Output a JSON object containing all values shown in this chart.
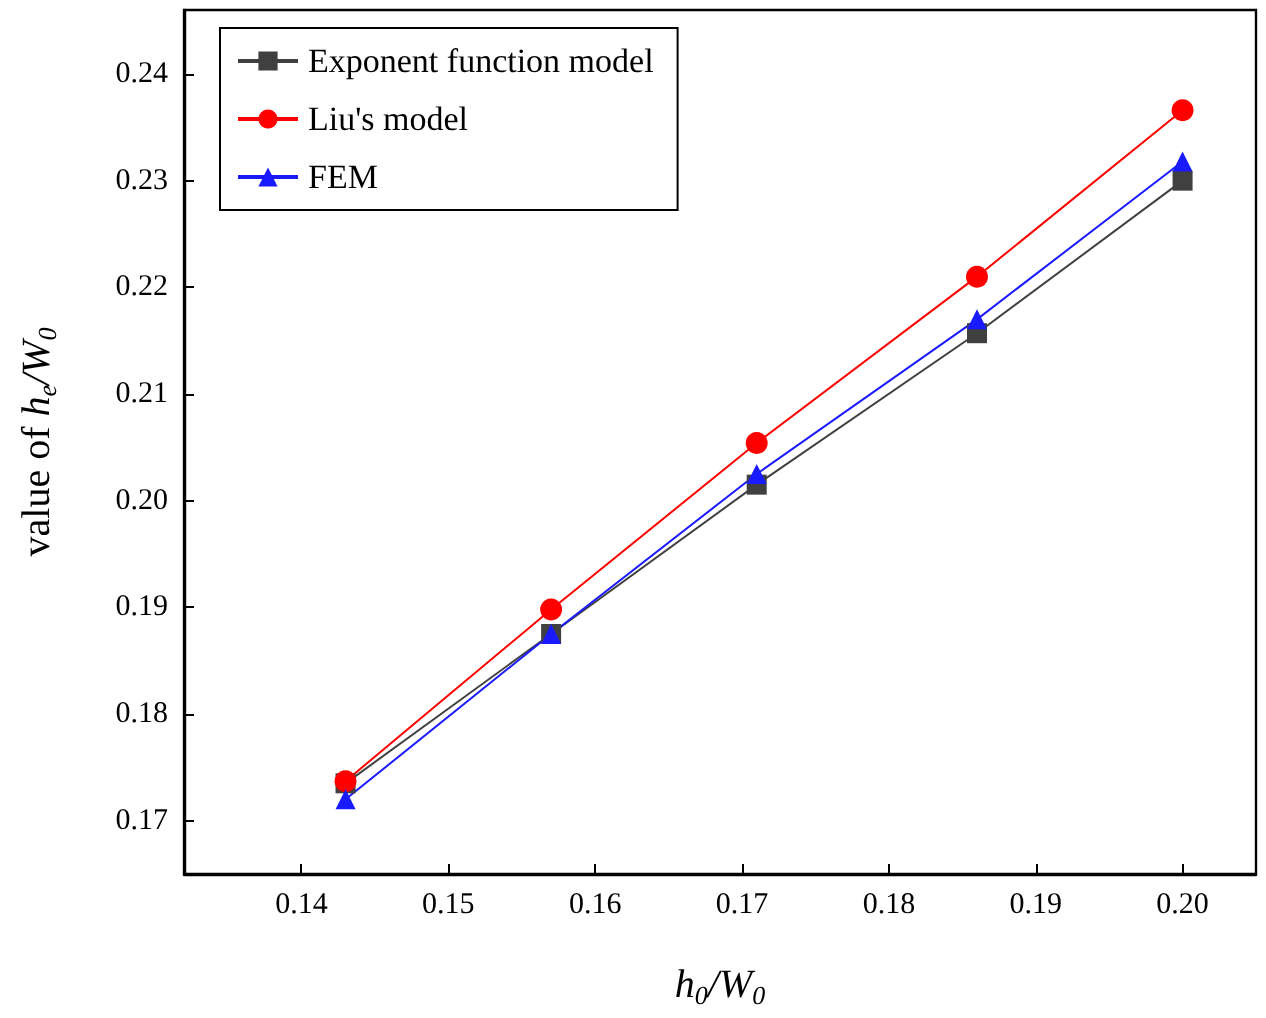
{
  "chart_data": {
    "type": "line",
    "xlabel": "h$_{0}$/W$_{0}$",
    "ylabel": "value of h$_{e}$/W$_{0}$",
    "x": [
      0.143,
      0.157,
      0.171,
      0.186,
      0.2
    ],
    "series": [
      {
        "name": "Exponent function model",
        "color": "#404040",
        "marker": "square",
        "values": [
          0.1735,
          0.1875,
          0.2015,
          0.2157,
          0.23
        ]
      },
      {
        "name": "Liu's model",
        "color": "#ff0000",
        "marker": "circle",
        "values": [
          0.1737,
          0.1898,
          0.2054,
          0.221,
          0.2366
        ]
      },
      {
        "name": "FEM",
        "color": "#1a1aff",
        "marker": "triangle",
        "values": [
          0.172,
          0.1875,
          0.2025,
          0.217,
          0.2318
        ]
      }
    ],
    "xlim": [
      0.132,
      0.205
    ],
    "xticks": [
      0.14,
      0.15,
      0.16,
      0.17,
      0.18,
      0.19,
      {
        "value": 0.2,
        "label": "0.20"
      }
    ],
    "ylim": [
      0.165,
      0.246
    ],
    "yticks": [
      0.17,
      0.18,
      0.19,
      {
        "value": 0.2,
        "label": "0.20"
      },
      0.21,
      0.22,
      0.23,
      0.24
    ],
    "legend": "top left",
    "grid": false,
    "line_style": "solid"
  }
}
